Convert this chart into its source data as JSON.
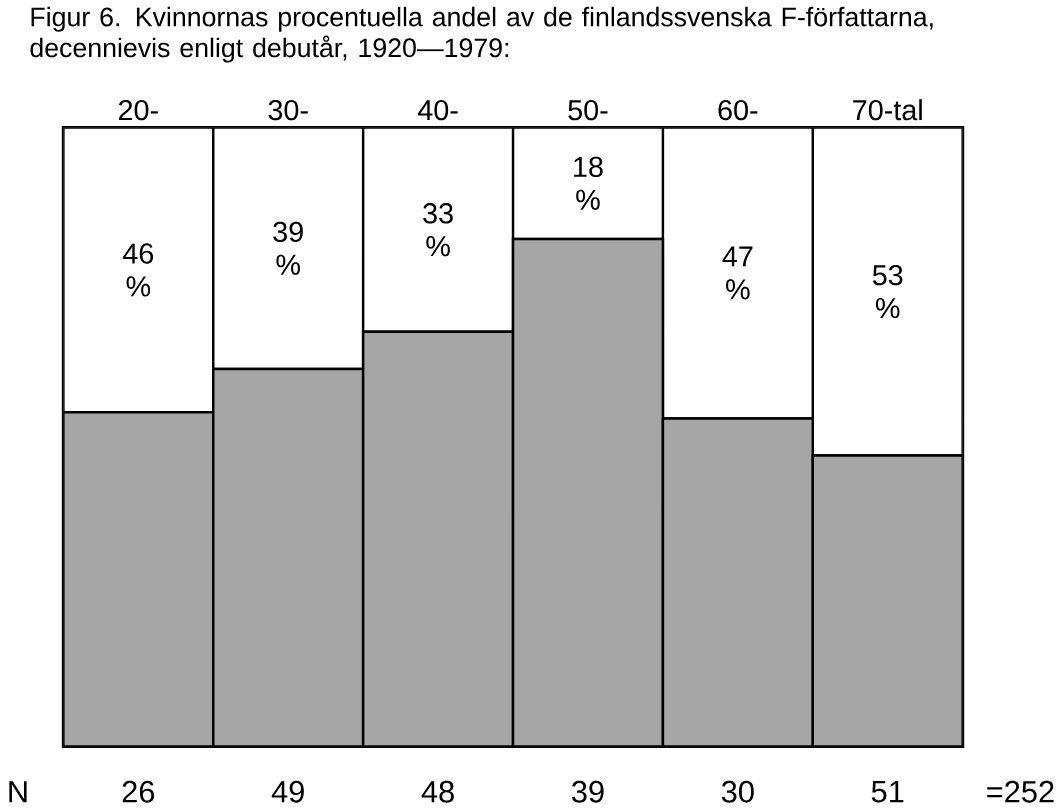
{
  "chart_data": {
    "type": "bar",
    "title": "Figur 6. Kvinnornas procentuella andel av de finlandssvenska F-författarna, decennievis enligt debutår, 1920—1979:",
    "categories": [
      "20-",
      "30-",
      "40-",
      "50-",
      "60-",
      "70-tal"
    ],
    "stacked": true,
    "ylim": [
      0,
      100
    ],
    "tick_labels": "x",
    "series": [
      {
        "color": "#a6a6a6",
        "values": [
          54,
          61,
          67,
          82,
          53,
          47
        ]
      },
      {
        "color": "#ffffff",
        "values": [
          46,
          39,
          33,
          18,
          47,
          53
        ],
        "value_labels": [
          "46 %",
          "39 %",
          "33 %",
          "18 %",
          "47 %",
          "53 %"
        ]
      }
    ],
    "annotations": [
      "N",
      "26",
      "49",
      "48",
      "39",
      "30",
      "51",
      "=252"
    ]
  }
}
